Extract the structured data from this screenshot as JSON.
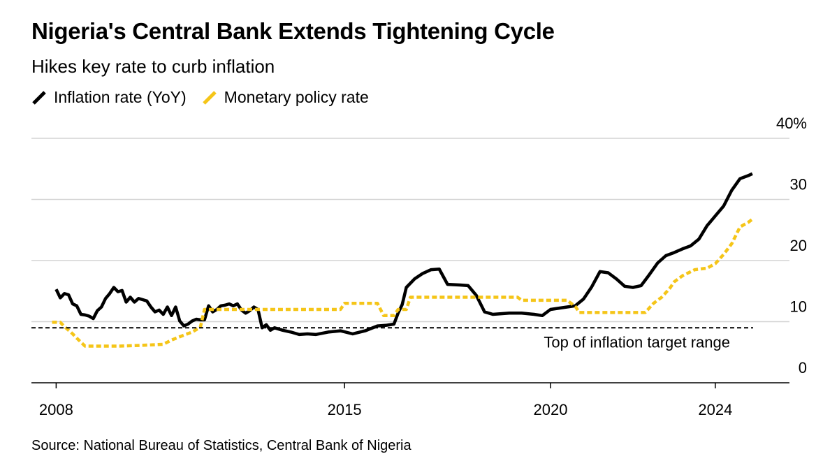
{
  "header": {
    "title": "Nigeria's Central Bank Extends Tightening Cycle",
    "subtitle": "Hikes key rate to curb inflation"
  },
  "footer": {
    "source": "Source: National Bureau of Statistics, Central Bank of Nigeria"
  },
  "chart_data": {
    "type": "line",
    "title": "Nigeria's Central Bank Extends Tightening Cycle",
    "subtitle": "Hikes key rate to curb inflation",
    "xlabel": "",
    "ylabel": "",
    "xlim": [
      2007.4,
      2025.8
    ],
    "ylim": [
      0,
      40
    ],
    "x_ticks": [
      {
        "value": 2008,
        "label": "2008"
      },
      {
        "value": 2015,
        "label": "2015"
      },
      {
        "value": 2020,
        "label": "2020"
      },
      {
        "value": 2024,
        "label": "2024"
      }
    ],
    "y_ticks": [
      {
        "value": 0,
        "label": "0"
      },
      {
        "value": 10,
        "label": "10"
      },
      {
        "value": 20,
        "label": "20"
      },
      {
        "value": 30,
        "label": "30"
      },
      {
        "value": 40,
        "label": "40%"
      }
    ],
    "grid": true,
    "legend_position": "top-left",
    "reference_line": {
      "value": 9,
      "label": "Top of inflation target range"
    },
    "series": [
      {
        "name": "Inflation rate (YoY)",
        "color": "#000000",
        "points": [
          [
            2008.0,
            15.3
          ],
          [
            2008.1,
            13.9
          ],
          [
            2008.2,
            14.6
          ],
          [
            2008.3,
            14.4
          ],
          [
            2008.4,
            12.9
          ],
          [
            2008.5,
            12.6
          ],
          [
            2008.6,
            11.2
          ],
          [
            2008.7,
            11.1
          ],
          [
            2008.8,
            10.9
          ],
          [
            2008.9,
            10.5
          ],
          [
            2009.0,
            11.8
          ],
          [
            2009.1,
            12.4
          ],
          [
            2009.2,
            13.8
          ],
          [
            2009.3,
            14.6
          ],
          [
            2009.4,
            15.6
          ],
          [
            2009.5,
            14.9
          ],
          [
            2009.6,
            15.1
          ],
          [
            2009.7,
            13.2
          ],
          [
            2009.8,
            14.0
          ],
          [
            2009.9,
            13.2
          ],
          [
            2010.0,
            13.8
          ],
          [
            2010.1,
            13.6
          ],
          [
            2010.2,
            13.4
          ],
          [
            2010.3,
            12.4
          ],
          [
            2010.4,
            11.6
          ],
          [
            2010.5,
            11.9
          ],
          [
            2010.6,
            11.2
          ],
          [
            2010.7,
            12.4
          ],
          [
            2010.8,
            11.0
          ],
          [
            2010.9,
            12.4
          ],
          [
            2011.0,
            10.1
          ],
          [
            2011.1,
            9.3
          ],
          [
            2011.2,
            9.6
          ],
          [
            2011.3,
            10.1
          ],
          [
            2011.4,
            10.4
          ],
          [
            2011.5,
            10.3
          ],
          [
            2011.6,
            10.3
          ],
          [
            2011.7,
            12.6
          ],
          [
            2011.8,
            11.6
          ],
          [
            2011.9,
            12.0
          ],
          [
            2012.0,
            12.6
          ],
          [
            2012.1,
            12.7
          ],
          [
            2012.2,
            12.9
          ],
          [
            2012.3,
            12.6
          ],
          [
            2012.4,
            12.9
          ],
          [
            2012.5,
            11.9
          ],
          [
            2012.6,
            11.4
          ],
          [
            2012.7,
            11.8
          ],
          [
            2012.8,
            12.4
          ],
          [
            2012.9,
            12.0
          ],
          [
            2013.0,
            9.0
          ],
          [
            2013.1,
            9.5
          ],
          [
            2013.2,
            8.6
          ],
          [
            2013.3,
            9.0
          ],
          [
            2013.5,
            8.6
          ],
          [
            2013.7,
            8.3
          ],
          [
            2013.9,
            7.9
          ],
          [
            2014.1,
            8.0
          ],
          [
            2014.3,
            7.9
          ],
          [
            2014.6,
            8.3
          ],
          [
            2014.9,
            8.5
          ],
          [
            2015.2,
            8.0
          ],
          [
            2015.5,
            8.5
          ],
          [
            2015.8,
            9.3
          ],
          [
            2016.0,
            9.4
          ],
          [
            2016.2,
            9.6
          ],
          [
            2016.3,
            11.4
          ],
          [
            2016.4,
            12.8
          ],
          [
            2016.5,
            15.6
          ],
          [
            2016.7,
            17.0
          ],
          [
            2016.9,
            17.9
          ],
          [
            2017.1,
            18.5
          ],
          [
            2017.3,
            18.6
          ],
          [
            2017.5,
            16.1
          ],
          [
            2017.8,
            16.0
          ],
          [
            2018.0,
            15.9
          ],
          [
            2018.2,
            14.3
          ],
          [
            2018.4,
            11.6
          ],
          [
            2018.6,
            11.2
          ],
          [
            2018.8,
            11.3
          ],
          [
            2019.0,
            11.4
          ],
          [
            2019.3,
            11.4
          ],
          [
            2019.6,
            11.2
          ],
          [
            2019.8,
            11.0
          ],
          [
            2020.0,
            12.0
          ],
          [
            2020.3,
            12.3
          ],
          [
            2020.6,
            12.6
          ],
          [
            2020.8,
            13.7
          ],
          [
            2021.0,
            15.7
          ],
          [
            2021.2,
            18.2
          ],
          [
            2021.4,
            18.0
          ],
          [
            2021.6,
            17.0
          ],
          [
            2021.8,
            15.8
          ],
          [
            2022.0,
            15.6
          ],
          [
            2022.2,
            15.9
          ],
          [
            2022.4,
            17.7
          ],
          [
            2022.6,
            19.6
          ],
          [
            2022.8,
            20.8
          ],
          [
            2023.0,
            21.3
          ],
          [
            2023.2,
            21.9
          ],
          [
            2023.4,
            22.4
          ],
          [
            2023.6,
            23.5
          ],
          [
            2023.8,
            25.7
          ],
          [
            2024.0,
            27.3
          ],
          [
            2024.2,
            28.9
          ],
          [
            2024.4,
            31.5
          ],
          [
            2024.6,
            33.4
          ],
          [
            2024.8,
            33.9
          ],
          [
            2024.9,
            34.2
          ]
        ]
      },
      {
        "name": "Monetary policy rate",
        "color": "#f5c518",
        "points": [
          [
            2007.9,
            9.9
          ],
          [
            2008.1,
            9.9
          ],
          [
            2008.2,
            9.2
          ],
          [
            2008.4,
            8.0
          ],
          [
            2008.5,
            7.3
          ],
          [
            2008.7,
            6.0
          ],
          [
            2009.0,
            6.0
          ],
          [
            2009.5,
            6.0
          ],
          [
            2010.0,
            6.1
          ],
          [
            2010.6,
            6.3
          ],
          [
            2010.8,
            7.0
          ],
          [
            2011.1,
            7.8
          ],
          [
            2011.3,
            8.3
          ],
          [
            2011.5,
            9.1
          ],
          [
            2011.6,
            12.0
          ],
          [
            2012.0,
            12.0
          ],
          [
            2014.5,
            12.0
          ],
          [
            2014.9,
            12.0
          ],
          [
            2015.0,
            13.0
          ],
          [
            2015.8,
            13.0
          ],
          [
            2015.95,
            11.0
          ],
          [
            2016.2,
            11.0
          ],
          [
            2016.3,
            12.0
          ],
          [
            2016.5,
            12.0
          ],
          [
            2016.6,
            14.0
          ],
          [
            2017.5,
            14.0
          ],
          [
            2019.2,
            14.0
          ],
          [
            2019.3,
            13.5
          ],
          [
            2020.0,
            13.5
          ],
          [
            2020.4,
            13.5
          ],
          [
            2020.6,
            12.5
          ],
          [
            2020.7,
            11.5
          ],
          [
            2022.0,
            11.5
          ],
          [
            2022.3,
            11.5
          ],
          [
            2022.5,
            13.0
          ],
          [
            2022.7,
            14.0
          ],
          [
            2022.9,
            15.5
          ],
          [
            2023.0,
            16.5
          ],
          [
            2023.2,
            17.5
          ],
          [
            2023.5,
            18.5
          ],
          [
            2023.8,
            18.75
          ],
          [
            2024.0,
            19.5
          ],
          [
            2024.2,
            21.0
          ],
          [
            2024.4,
            22.75
          ],
          [
            2024.6,
            25.5
          ],
          [
            2024.8,
            26.25
          ],
          [
            2024.9,
            26.75
          ]
        ]
      }
    ]
  }
}
